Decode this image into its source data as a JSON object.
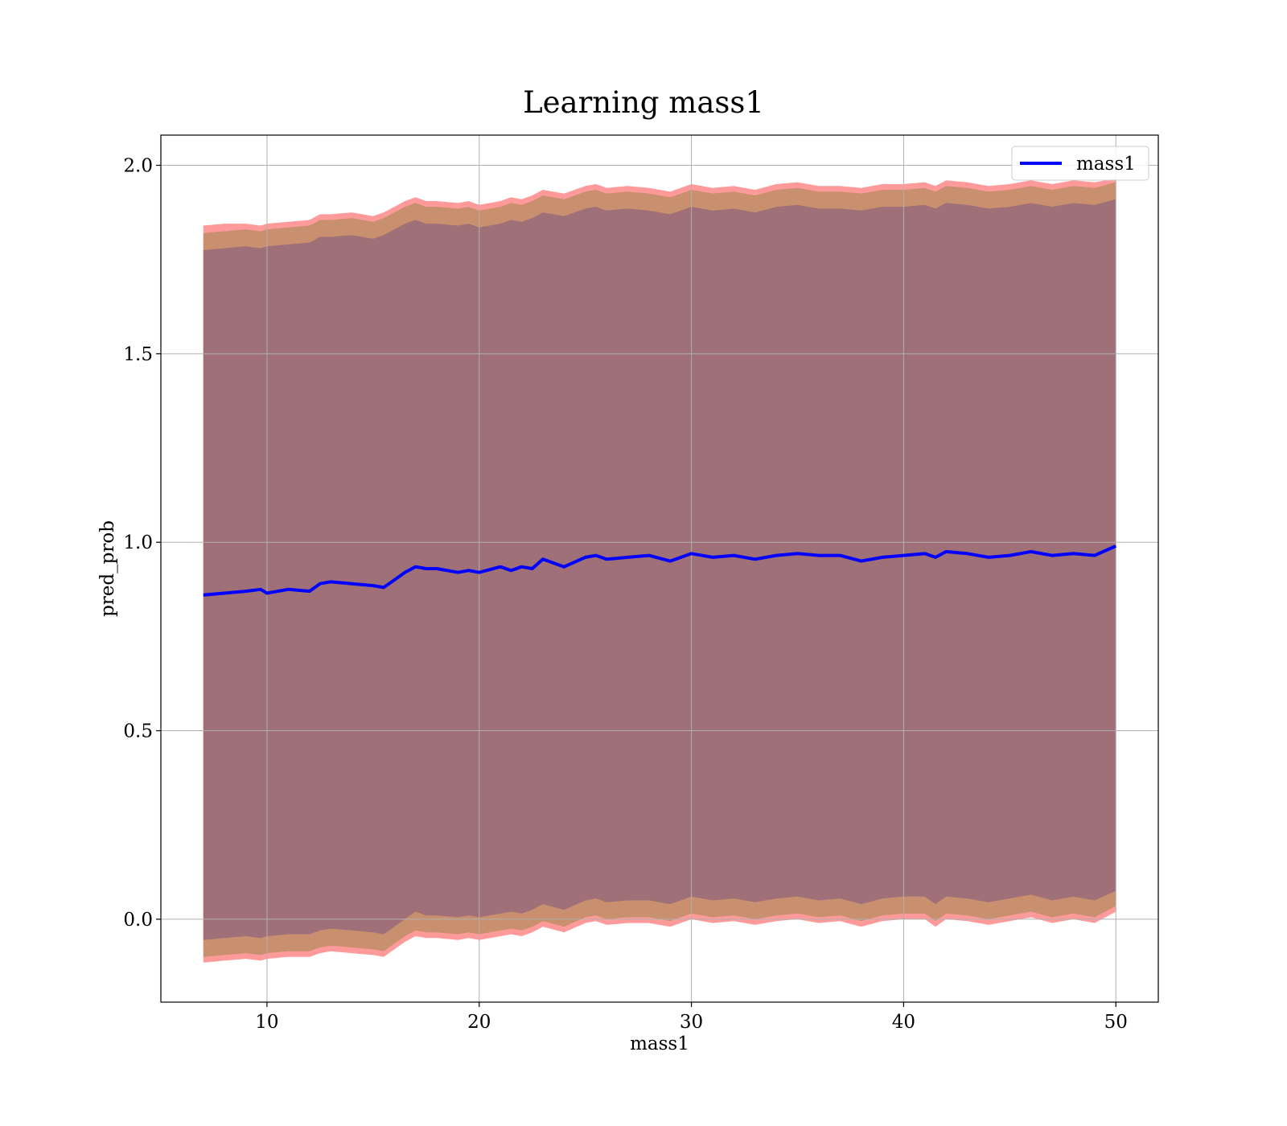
{
  "chart_data": {
    "type": "line",
    "title": "Learning mass1",
    "xlabel": "mass1",
    "ylabel": "pred_prob",
    "xlim": [
      5,
      52
    ],
    "ylim": [
      -0.22,
      2.08
    ],
    "xticks": [
      10,
      20,
      30,
      40,
      50
    ],
    "yticks": [
      0.0,
      0.5,
      1.0,
      1.5,
      2.0
    ],
    "xtick_labels": [
      "10",
      "20",
      "30",
      "40",
      "50"
    ],
    "ytick_labels": [
      "0.0",
      "0.5",
      "1.0",
      "1.5",
      "2.0"
    ],
    "grid": true,
    "legend": {
      "placement": "upper-right",
      "entries": [
        "mass1"
      ]
    },
    "colors": {
      "line": "#0000ff",
      "band_outer": "#ff9a9a",
      "band_middle": "#c8906e",
      "band_inner": "#a07078",
      "grid": "#b0b0b0"
    },
    "x": [
      7.0,
      8.0,
      9.0,
      9.7,
      10.0,
      11.0,
      12.0,
      12.5,
      13.0,
      14.0,
      15.0,
      15.5,
      16.0,
      16.5,
      17.0,
      17.5,
      18.0,
      19.0,
      19.5,
      20.0,
      21.0,
      21.5,
      22.0,
      22.5,
      23.0,
      24.0,
      25.0,
      25.5,
      26.0,
      27.0,
      28.0,
      29.0,
      30.0,
      31.0,
      32.0,
      33.0,
      34.0,
      35.0,
      36.0,
      37.0,
      38.0,
      39.0,
      40.0,
      41.0,
      41.5,
      42.0,
      43.0,
      44.0,
      45.0,
      46.0,
      47.0,
      48.0,
      49.0,
      50.0
    ],
    "series": [
      {
        "name": "mass1",
        "values": [
          0.86,
          0.865,
          0.87,
          0.875,
          0.865,
          0.875,
          0.87,
          0.89,
          0.895,
          0.89,
          0.885,
          0.88,
          0.9,
          0.92,
          0.935,
          0.93,
          0.93,
          0.92,
          0.925,
          0.92,
          0.935,
          0.925,
          0.935,
          0.93,
          0.955,
          0.935,
          0.96,
          0.965,
          0.955,
          0.96,
          0.965,
          0.95,
          0.97,
          0.96,
          0.965,
          0.955,
          0.965,
          0.97,
          0.965,
          0.965,
          0.95,
          0.96,
          0.965,
          0.97,
          0.96,
          0.975,
          0.97,
          0.96,
          0.965,
          0.975,
          0.965,
          0.97,
          0.965,
          0.99
        ]
      }
    ],
    "bands": [
      {
        "name": "outer",
        "upper": [
          1.84,
          1.845,
          1.845,
          1.84,
          1.845,
          1.85,
          1.855,
          1.87,
          1.87,
          1.875,
          1.865,
          1.875,
          1.89,
          1.905,
          1.915,
          1.905,
          1.905,
          1.9,
          1.905,
          1.895,
          1.905,
          1.915,
          1.91,
          1.92,
          1.935,
          1.925,
          1.945,
          1.95,
          1.94,
          1.945,
          1.94,
          1.93,
          1.95,
          1.94,
          1.945,
          1.935,
          1.95,
          1.955,
          1.945,
          1.945,
          1.94,
          1.95,
          1.95,
          1.955,
          1.945,
          1.96,
          1.955,
          1.945,
          1.95,
          1.96,
          1.95,
          1.96,
          1.955,
          1.965
        ],
        "lower": [
          -0.115,
          -0.11,
          -0.105,
          -0.11,
          -0.105,
          -0.1,
          -0.1,
          -0.09,
          -0.085,
          -0.09,
          -0.095,
          -0.1,
          -0.08,
          -0.06,
          -0.045,
          -0.05,
          -0.05,
          -0.055,
          -0.05,
          -0.055,
          -0.045,
          -0.04,
          -0.045,
          -0.035,
          -0.02,
          -0.035,
          -0.01,
          -0.005,
          -0.015,
          -0.01,
          -0.01,
          -0.02,
          0.0,
          -0.01,
          -0.005,
          -0.015,
          -0.005,
          0.0,
          -0.01,
          -0.005,
          -0.02,
          -0.005,
          0.0,
          0.0,
          -0.02,
          0.0,
          -0.005,
          -0.015,
          -0.005,
          0.005,
          -0.01,
          0.0,
          -0.01,
          0.02
        ]
      },
      {
        "name": "middle",
        "upper": [
          1.82,
          1.825,
          1.83,
          1.825,
          1.83,
          1.835,
          1.84,
          1.855,
          1.855,
          1.86,
          1.85,
          1.86,
          1.875,
          1.89,
          1.9,
          1.89,
          1.89,
          1.885,
          1.89,
          1.88,
          1.89,
          1.9,
          1.895,
          1.905,
          1.92,
          1.91,
          1.93,
          1.935,
          1.925,
          1.93,
          1.925,
          1.915,
          1.935,
          1.925,
          1.93,
          1.92,
          1.935,
          1.94,
          1.93,
          1.93,
          1.925,
          1.935,
          1.935,
          1.94,
          1.93,
          1.945,
          1.94,
          1.93,
          1.935,
          1.945,
          1.935,
          1.945,
          1.94,
          1.955
        ],
        "lower": [
          -0.1,
          -0.095,
          -0.09,
          -0.095,
          -0.09,
          -0.085,
          -0.085,
          -0.075,
          -0.07,
          -0.075,
          -0.08,
          -0.085,
          -0.065,
          -0.045,
          -0.03,
          -0.035,
          -0.035,
          -0.04,
          -0.035,
          -0.04,
          -0.03,
          -0.025,
          -0.03,
          -0.02,
          -0.005,
          -0.02,
          0.005,
          0.01,
          0.0,
          0.005,
          0.005,
          -0.005,
          0.015,
          0.005,
          0.01,
          0.0,
          0.01,
          0.015,
          0.005,
          0.01,
          -0.005,
          0.01,
          0.015,
          0.015,
          -0.005,
          0.015,
          0.01,
          0.0,
          0.01,
          0.02,
          0.005,
          0.015,
          0.005,
          0.035
        ]
      },
      {
        "name": "inner",
        "upper": [
          1.775,
          1.78,
          1.785,
          1.78,
          1.785,
          1.79,
          1.795,
          1.81,
          1.81,
          1.815,
          1.805,
          1.815,
          1.83,
          1.845,
          1.855,
          1.845,
          1.845,
          1.84,
          1.845,
          1.835,
          1.845,
          1.855,
          1.85,
          1.86,
          1.875,
          1.865,
          1.885,
          1.89,
          1.88,
          1.885,
          1.88,
          1.87,
          1.89,
          1.88,
          1.885,
          1.875,
          1.89,
          1.895,
          1.885,
          1.885,
          1.88,
          1.89,
          1.89,
          1.895,
          1.885,
          1.9,
          1.895,
          1.885,
          1.89,
          1.9,
          1.89,
          1.9,
          1.895,
          1.91
        ],
        "lower": [
          -0.055,
          -0.05,
          -0.045,
          -0.05,
          -0.045,
          -0.04,
          -0.04,
          -0.03,
          -0.025,
          -0.03,
          -0.035,
          -0.04,
          -0.02,
          0.0,
          0.02,
          0.01,
          0.01,
          0.005,
          0.01,
          0.005,
          0.015,
          0.02,
          0.015,
          0.025,
          0.04,
          0.025,
          0.05,
          0.055,
          0.045,
          0.05,
          0.05,
          0.04,
          0.06,
          0.05,
          0.055,
          0.045,
          0.055,
          0.06,
          0.05,
          0.055,
          0.04,
          0.055,
          0.06,
          0.06,
          0.04,
          0.06,
          0.055,
          0.045,
          0.055,
          0.065,
          0.05,
          0.06,
          0.05,
          0.075
        ]
      }
    ]
  }
}
